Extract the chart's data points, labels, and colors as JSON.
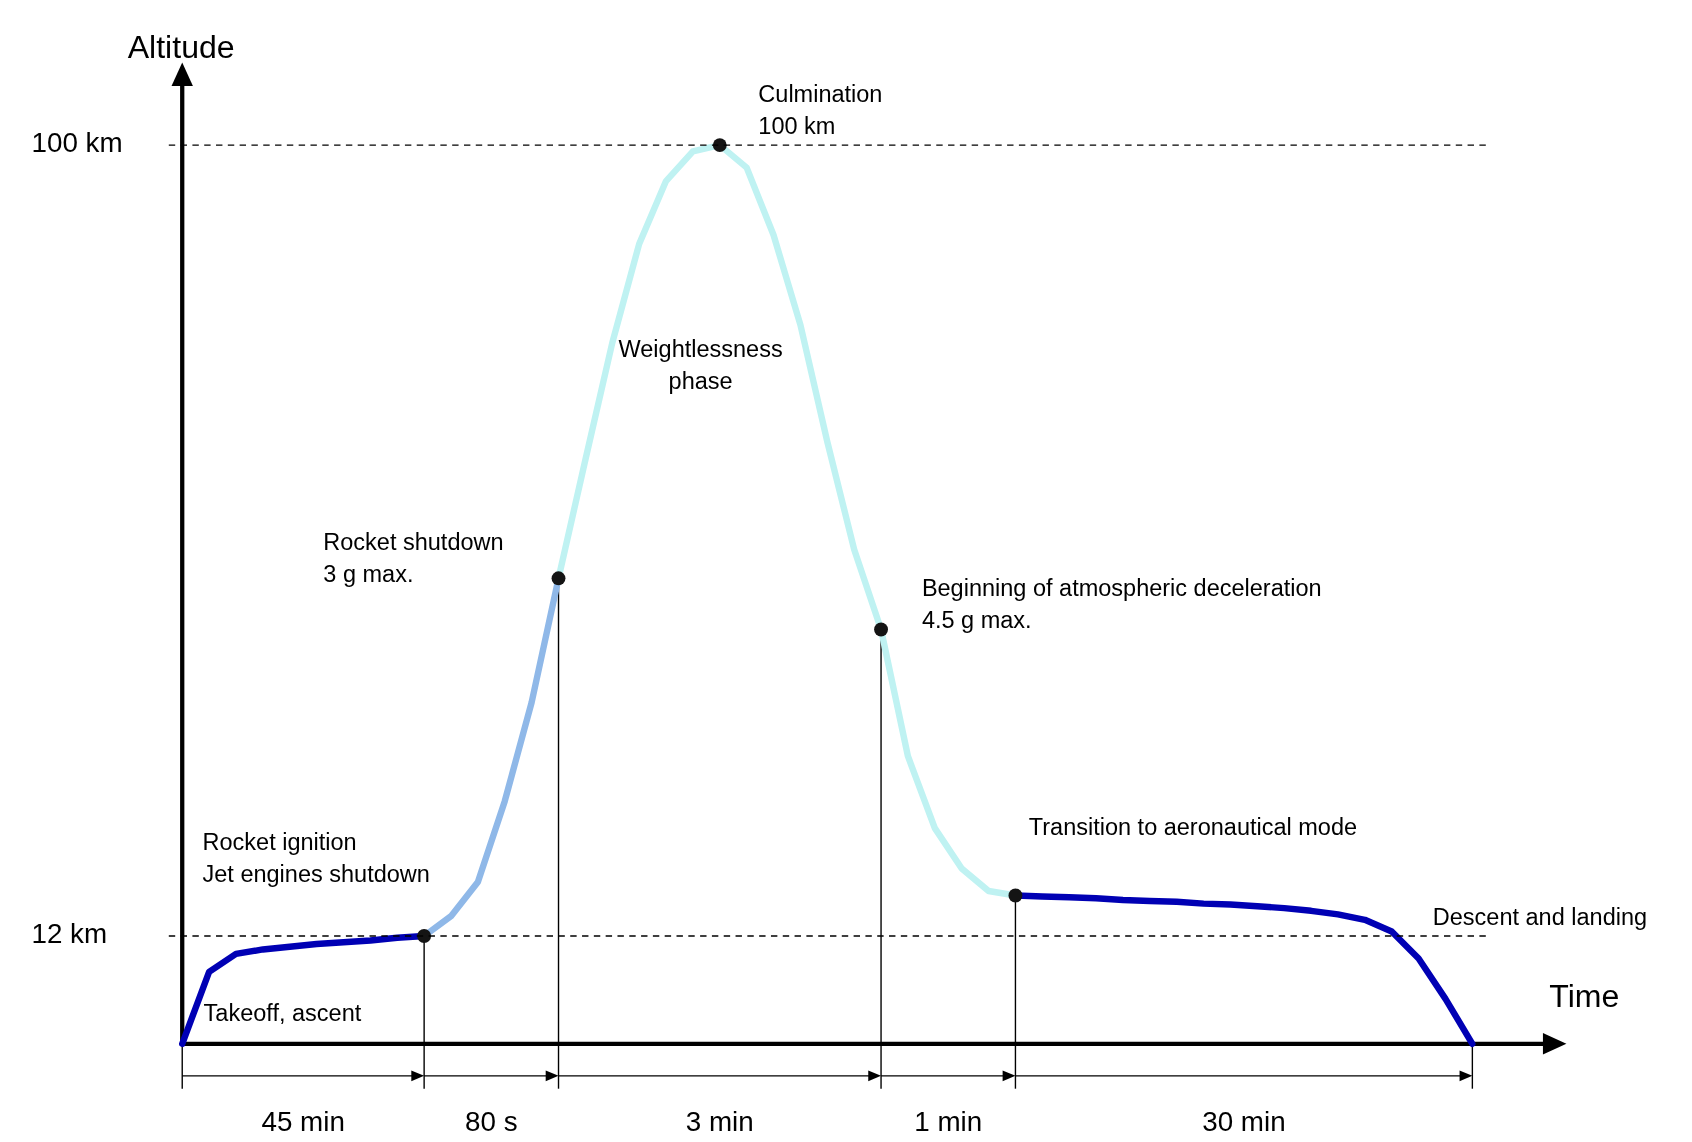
{
  "chart_data": {
    "type": "line",
    "ylabel": "Altitude",
    "categories": [
      null,
      null,
      null,
      null,
      null,
      null,
      null,
      null,
      null,
      null,
      null,
      null,
      null,
      null,
      null,
      null,
      null,
      null,
      null,
      null,
      null,
      null,
      null,
      null,
      null,
      null,
      null,
      null,
      null,
      null,
      null,
      null,
      null,
      null,
      null,
      null,
      null,
      null,
      null,
      null,
      null,
      null,
      null,
      null,
      null,
      null,
      null,
      null,
      null
    ],
    "ylim": [
      0,
      108
    ],
    "yticks": [
      {
        "value": 12,
        "label": "12 km"
      },
      {
        "value": 100,
        "label": "100 km"
      }
    ],
    "tick_labels": "y",
    "line_style": "solid",
    "series": [
      {
        "color": "#0000b4",
        "values": [
          0,
          8,
          10,
          10.5,
          10.8,
          11.1,
          11.3,
          11.5,
          11.8,
          12,
          null,
          null,
          null,
          null,
          null,
          null,
          null,
          null,
          null,
          null,
          null,
          null,
          null,
          null,
          null,
          null,
          null,
          null,
          null,
          null,
          null,
          16.5,
          16.4,
          16.3,
          16.2,
          16,
          15.9,
          15.8,
          15.6,
          15.5,
          15.3,
          15.1,
          14.8,
          14.4,
          13.8,
          12.5,
          9.5,
          5,
          0
        ]
      },
      {
        "color": "#8fb8e8",
        "values": [
          null,
          null,
          null,
          null,
          null,
          null,
          null,
          null,
          null,
          12,
          14.2,
          18,
          27,
          38,
          51.8,
          null,
          null,
          null,
          null,
          null,
          null,
          null,
          null,
          null,
          null,
          null,
          null,
          null,
          null,
          null,
          null,
          null,
          null,
          null,
          null,
          null,
          null,
          null,
          null,
          null,
          null,
          null,
          null,
          null,
          null,
          null,
          null,
          null,
          null
        ]
      },
      {
        "color": "#bff2f2",
        "values": [
          null,
          null,
          null,
          null,
          null,
          null,
          null,
          null,
          null,
          null,
          null,
          null,
          null,
          null,
          51.8,
          65,
          78,
          89,
          96,
          99.3,
          100,
          97.5,
          90,
          80,
          67,
          55,
          46.1,
          32,
          24,
          19.5,
          17,
          16.5,
          null,
          null,
          null,
          null,
          null,
          null,
          null,
          null,
          null,
          null,
          null,
          null,
          null,
          null,
          null,
          null,
          null
        ]
      },
      {
        "type": "scatter",
        "color": "#141414",
        "marker": "circle",
        "values": [
          null,
          null,
          null,
          null,
          null,
          null,
          null,
          null,
          null,
          12,
          null,
          null,
          null,
          null,
          51.8,
          null,
          null,
          null,
          null,
          null,
          100,
          null,
          null,
          null,
          null,
          null,
          46.1,
          null,
          null,
          null,
          null,
          16.5,
          null,
          null,
          null,
          null,
          null,
          null,
          null,
          null,
          null,
          null,
          null,
          null,
          null,
          null,
          null,
          null,
          null
        ]
      }
    ],
    "ref_lines": [
      {
        "axis": "y",
        "value": 12,
        "color": "#000000",
        "line_style": "dashed"
      },
      {
        "axis": "y",
        "value": 100,
        "color": "#000000",
        "line_style": "dashed"
      }
    ],
    "annotations": [
      "Culmination\n100 km",
      "Weightlessness\nphase",
      "Rocket shutdown\n3 g max.",
      "Beginning of atmospheric deceleration\n4.5 g max.",
      "Rocket ignition\nJet engines shutdown",
      "Transition to aeronautical mode",
      "Descent and landing",
      "Takeoff, ascent",
      "Time",
      "45 min",
      "80 s",
      "3 min",
      "1 min",
      "30 min"
    ]
  }
}
